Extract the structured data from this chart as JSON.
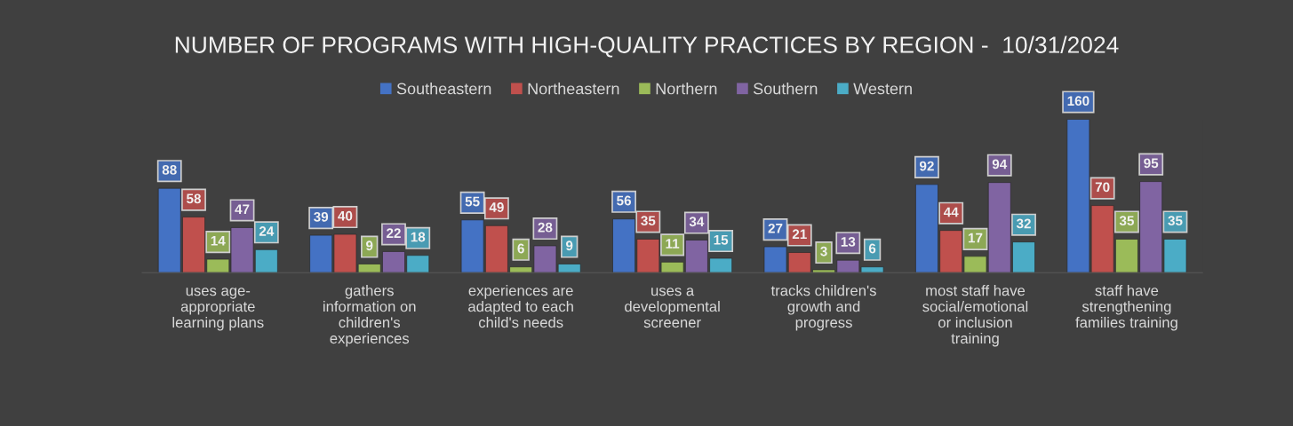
{
  "chart_data": {
    "type": "bar",
    "title": "NUMBER OF PROGRAMS WITH HIGH-QUALITY PRACTICES BY REGION -  10/31/2024",
    "categories": [
      "uses age-\nappropriate\nlearning plans",
      "gathers\ninformation on\nchildren's\nexperiences",
      "experiences are\nadapted to each\nchild's needs",
      "uses a\ndevelopmental\nscreener",
      "tracks children's\ngrowth and\nprogress",
      "most staff have\nsocial/emotional\nor inclusion\ntraining",
      "staff have\nstrengthening\nfamilies training"
    ],
    "series": [
      {
        "name": "Southeastern",
        "color": "#4472c4",
        "values": [
          88,
          39,
          55,
          56,
          27,
          92,
          160
        ]
      },
      {
        "name": "Northeastern",
        "color": "#c0504d",
        "values": [
          58,
          40,
          49,
          35,
          21,
          44,
          70
        ]
      },
      {
        "name": "Northern",
        "color": "#9bbb59",
        "values": [
          14,
          9,
          6,
          11,
          3,
          17,
          35
        ]
      },
      {
        "name": "Southern",
        "color": "#8064a2",
        "values": [
          47,
          22,
          28,
          34,
          13,
          94,
          95
        ]
      },
      {
        "name": "Western",
        "color": "#4bacc6",
        "values": [
          24,
          18,
          9,
          15,
          6,
          32,
          35
        ]
      }
    ],
    "data_labels": true,
    "legend": "top",
    "grid": false
  }
}
